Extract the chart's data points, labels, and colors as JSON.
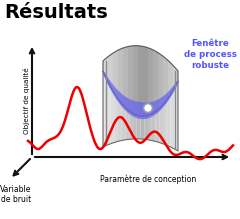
{
  "title": "Résultats",
  "title_fontsize": 14,
  "title_fontweight": "bold",
  "background_color": "#ffffff",
  "label_qualite": "Objectif de qualité",
  "label_bruit": "Variable\nde bruit",
  "label_conception": "Paramètre de conception",
  "label_fenetre": "Fenêtre\nde process\nrobuste",
  "label_fenetre_color": "#5555ff",
  "red_curve_color": "#ee0000",
  "dot_color": "#ffffff",
  "dot_edge_color": "#888888",
  "surface_main_color": "#c8c8c8",
  "surface_dark_color": "#888888",
  "surface_light_color": "#e8e8e8",
  "blue_fill_color": "#6666ee",
  "axis_color": "#111111"
}
